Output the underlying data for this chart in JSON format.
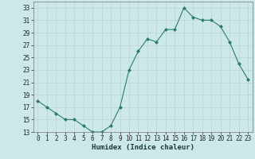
{
  "x": [
    0,
    1,
    2,
    3,
    4,
    5,
    6,
    7,
    8,
    9,
    10,
    11,
    12,
    13,
    14,
    15,
    16,
    17,
    18,
    19,
    20,
    21,
    22,
    23
  ],
  "y": [
    18,
    17,
    16,
    15,
    15,
    14,
    13,
    13,
    14,
    17,
    23,
    26,
    28,
    27.5,
    29.5,
    29.5,
    33,
    31.5,
    31,
    31,
    30,
    27.5,
    24,
    21.5
  ],
  "line_color": "#2d7a6e",
  "marker": "D",
  "marker_size": 2.0,
  "bg_color": "#cce8e8",
  "grid_major_color": "#aaaaaa",
  "grid_minor_color": "#ccdddd",
  "xlabel": "Humidex (Indice chaleur)",
  "ylim": [
    13,
    34
  ],
  "yticks": [
    13,
    15,
    17,
    19,
    21,
    23,
    25,
    27,
    29,
    31,
    33
  ],
  "xlim": [
    -0.5,
    23.5
  ],
  "xticks": [
    0,
    1,
    2,
    3,
    4,
    5,
    6,
    7,
    8,
    9,
    10,
    11,
    12,
    13,
    14,
    15,
    16,
    17,
    18,
    19,
    20,
    21,
    22,
    23
  ],
  "tick_fontsize": 5.5,
  "xlabel_fontsize": 6.5
}
